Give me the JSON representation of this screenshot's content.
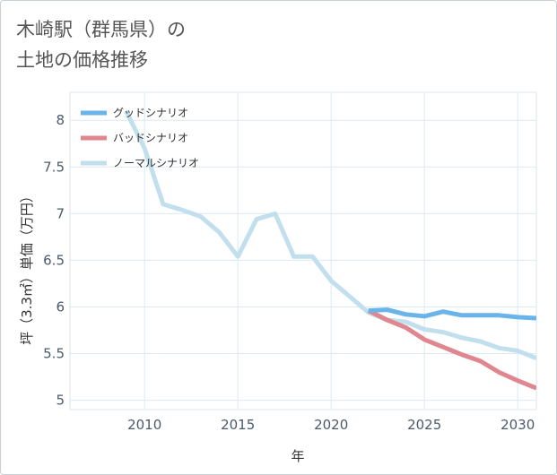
{
  "title_line1": "木崎駅（群馬県）の",
  "title_line2": "土地の価格推移",
  "chart_data": {
    "type": "line",
    "xlabel": "年",
    "ylabel": "坪（3.3㎡）単価（万円）",
    "xlim": [
      2006,
      2031
    ],
    "ylim": [
      4.9,
      8.3
    ],
    "x_ticks": [
      2010,
      2015,
      2020,
      2025,
      2030
    ],
    "y_ticks": [
      5,
      5.5,
      6,
      6.5,
      7,
      7.5,
      8
    ],
    "y_tick_labels": [
      "5",
      "5.5",
      "6",
      "6.5",
      "7",
      "7.5",
      "8"
    ],
    "grid": true,
    "legend_position": "top-left",
    "series": [
      {
        "name": "グッドシナリオ",
        "color": "#6ab4ea",
        "x": [
          2022,
          2023,
          2024,
          2025,
          2026,
          2027,
          2028,
          2029,
          2030,
          2031
        ],
        "values": [
          5.96,
          5.97,
          5.92,
          5.9,
          5.95,
          5.91,
          5.91,
          5.91,
          5.89,
          5.88
        ]
      },
      {
        "name": "バッドシナリオ",
        "color": "#e0868e",
        "x": [
          2022,
          2023,
          2024,
          2025,
          2026,
          2027,
          2028,
          2029,
          2030,
          2031
        ],
        "values": [
          5.96,
          5.86,
          5.78,
          5.65,
          5.57,
          5.49,
          5.42,
          5.3,
          5.21,
          5.13
        ]
      },
      {
        "name": "ノーマルシナリオ",
        "color": "#c2dfed",
        "x": [
          2009,
          2010,
          2011,
          2012,
          2013,
          2014,
          2015,
          2016,
          2017,
          2018,
          2019,
          2020,
          2021,
          2022,
          2023,
          2024,
          2025,
          2026,
          2027,
          2028,
          2029,
          2030,
          2031
        ],
        "values": [
          8.1,
          7.7,
          7.1,
          7.04,
          6.97,
          6.8,
          6.54,
          6.94,
          7.0,
          6.54,
          6.54,
          6.28,
          6.11,
          5.94,
          5.86,
          5.84,
          5.76,
          5.73,
          5.67,
          5.63,
          5.56,
          5.53,
          5.45
        ]
      }
    ]
  }
}
